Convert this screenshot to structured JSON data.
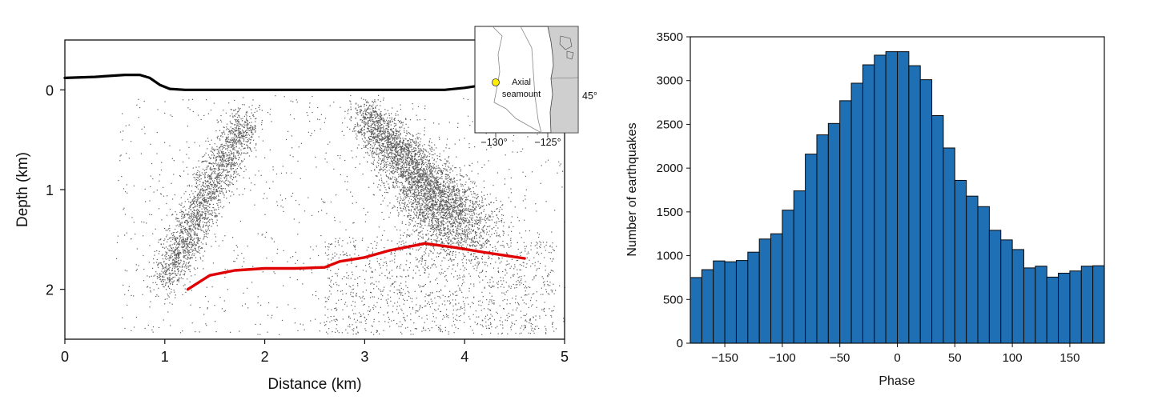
{
  "chart_data": [
    {
      "type": "scatter",
      "title": "",
      "xlabel": "Distance (km)",
      "ylabel": "Depth (km)",
      "xlim": [
        0,
        5
      ],
      "ylim": [
        2.5,
        -0.5
      ],
      "y_inverted": true,
      "xticks": [
        "0",
        "1",
        "2",
        "3",
        "4",
        "5"
      ],
      "yticks": [
        "0",
        "1",
        "2"
      ],
      "grid": false,
      "series": [
        {
          "kind": "line",
          "color": "#000000",
          "x": [
            0.0,
            0.3,
            0.6,
            0.75,
            0.85,
            0.95,
            1.05,
            1.2,
            1.5,
            2.0,
            2.5,
            3.0,
            3.5,
            3.8,
            4.0,
            4.2,
            4.3
          ],
          "y": [
            -0.12,
            -0.13,
            -0.15,
            -0.15,
            -0.12,
            -0.05,
            -0.01,
            0.0,
            0.0,
            0.0,
            0.0,
            0.0,
            0.0,
            0.0,
            -0.02,
            -0.05,
            -0.06
          ]
        },
        {
          "kind": "line",
          "color": "#e00000",
          "x": [
            1.23,
            1.45,
            1.7,
            2.0,
            2.3,
            2.6,
            2.75,
            3.0,
            3.25,
            3.45,
            3.6,
            3.9,
            4.2,
            4.6
          ],
          "y": [
            2.0,
            1.86,
            1.81,
            1.79,
            1.79,
            1.78,
            1.72,
            1.68,
            1.61,
            1.57,
            1.54,
            1.58,
            1.63,
            1.69
          ]
        },
        {
          "kind": "scatter-cloud",
          "color": "#555555",
          "description_clusters": [
            {
              "from": [
                1.0,
                1.9
              ],
              "to": [
                1.8,
                0.3
              ],
              "spread": 0.14,
              "density": "high"
            },
            {
              "from": [
                3.0,
                0.2
              ],
              "to": [
                4.0,
                1.4
              ],
              "spread": 0.2,
              "density": "very-high"
            }
          ]
        }
      ]
    },
    {
      "type": "bar",
      "title": "",
      "xlabel": "Phase",
      "ylabel": "Number of earthquakes",
      "xlim": [
        -180,
        180
      ],
      "ylim": [
        0,
        3500
      ],
      "xticks": [
        "−150",
        "−100",
        "−50",
        "0",
        "50",
        "100",
        "150"
      ],
      "yticks": [
        "0",
        "500",
        "1000",
        "1500",
        "2000",
        "2500",
        "3000",
        "3500"
      ],
      "bin_width": 10,
      "bin_edges_start": -180,
      "bar_color": "#1f6fb5",
      "values": [
        750,
        840,
        940,
        930,
        945,
        1040,
        1190,
        1250,
        1520,
        1740,
        2160,
        2380,
        2510,
        2770,
        2970,
        3180,
        3290,
        3330,
        3330,
        3170,
        3010,
        2600,
        2230,
        1860,
        1680,
        1560,
        1290,
        1180,
        1070,
        860,
        880,
        755,
        800,
        825,
        880,
        885
      ]
    }
  ],
  "inset_map": {
    "label": "Axial\nseamount",
    "label_line1": "Axial",
    "label_line2": "seamount",
    "lat_label": "45°",
    "lon_labels": [
      "−130°",
      "−125°"
    ],
    "marker_color": "#ffee00",
    "land_color": "#cfcfcf"
  }
}
